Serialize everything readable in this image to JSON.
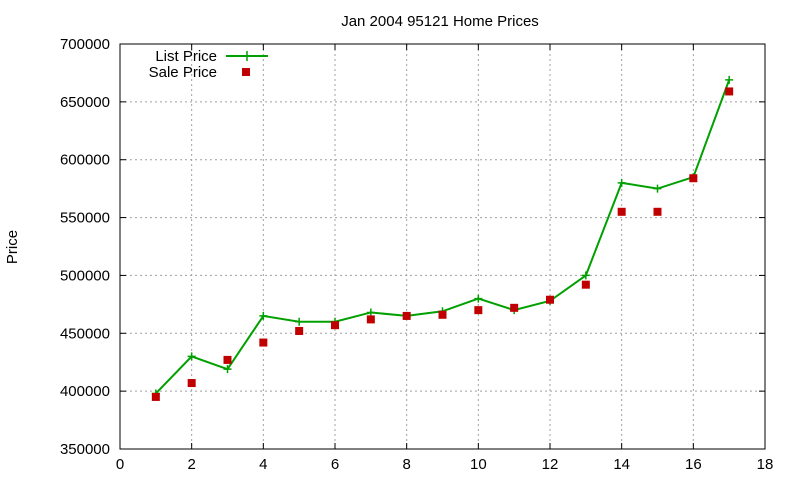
{
  "chart_data": {
    "type": "line",
    "title": "Jan 2004 95121 Home Prices",
    "xlabel": "",
    "ylabel": "Price",
    "xlim": [
      0,
      18
    ],
    "ylim": [
      350000,
      700000
    ],
    "xticks": [
      0,
      2,
      4,
      6,
      8,
      10,
      12,
      14,
      16,
      18
    ],
    "yticks": [
      350000,
      400000,
      450000,
      500000,
      550000,
      600000,
      650000,
      700000
    ],
    "grid": true,
    "legend_position": "top-left",
    "series": [
      {
        "name": "List Price",
        "style": "line-with-plus-markers",
        "color": "#00a000",
        "x": [
          1,
          2,
          3,
          4,
          5,
          6,
          7,
          8,
          9,
          10,
          11,
          12,
          13,
          14,
          15,
          16,
          17
        ],
        "y": [
          398000,
          430000,
          419000,
          465000,
          460000,
          460000,
          468000,
          465000,
          469000,
          480000,
          470000,
          478000,
          500000,
          580000,
          575000,
          585000,
          669000
        ]
      },
      {
        "name": "Sale Price",
        "style": "square-markers",
        "color": "#c00000",
        "x": [
          1,
          2,
          3,
          4,
          5,
          6,
          7,
          8,
          9,
          10,
          11,
          12,
          13,
          14,
          15,
          16,
          17
        ],
        "y": [
          395000,
          407000,
          427000,
          442000,
          452000,
          457000,
          462000,
          465000,
          466000,
          470000,
          472000,
          479000,
          492000,
          555000,
          555000,
          584000,
          659000
        ]
      }
    ]
  }
}
